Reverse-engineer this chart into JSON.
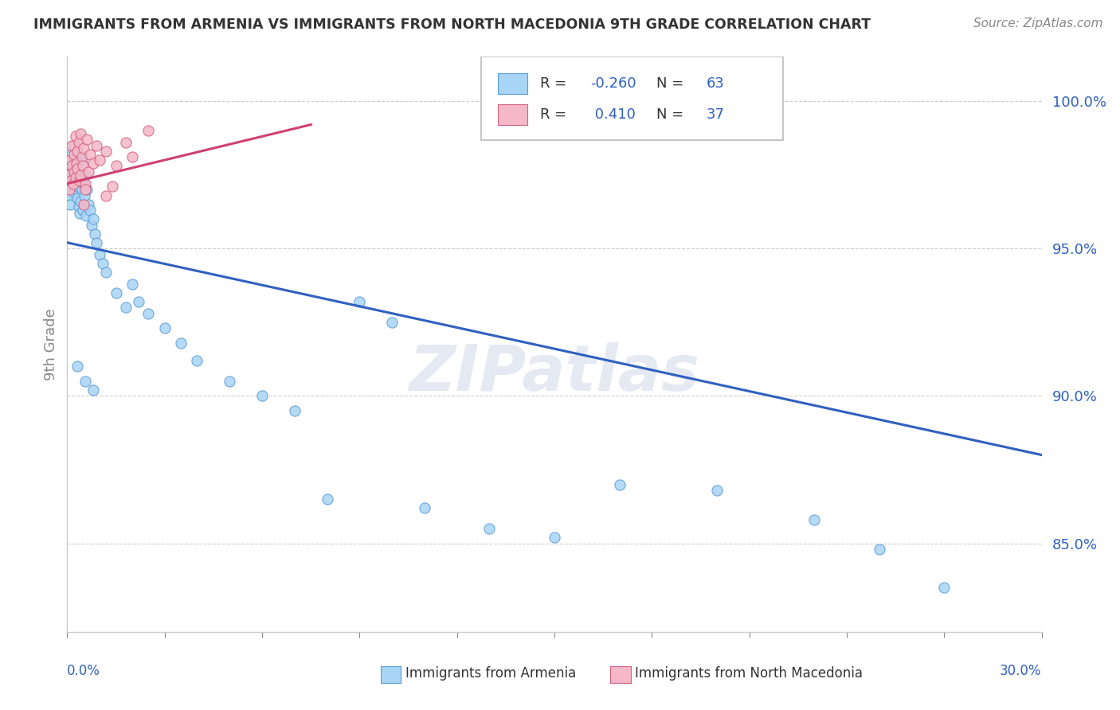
{
  "title": "IMMIGRANTS FROM ARMENIA VS IMMIGRANTS FROM NORTH MACEDONIA 9TH GRADE CORRELATION CHART",
  "source": "Source: ZipAtlas.com",
  "ylabel": "9th Grade",
  "xlim": [
    0.0,
    30.0
  ],
  "ylim": [
    82.0,
    101.5
  ],
  "yticks": [
    85.0,
    90.0,
    95.0,
    100.0
  ],
  "ytick_labels": [
    "85.0%",
    "90.0%",
    "95.0%",
    "100.0%"
  ],
  "r_armenia": -0.26,
  "n_armenia": 63,
  "r_macedonia": 0.41,
  "n_macedonia": 37,
  "color_armenia": "#a8d4f5",
  "color_armenia_edge": "#5b9bd5",
  "color_armenia_line": "#3060c0",
  "color_macedonia": "#f5b8c8",
  "color_macedonia_edge": "#d06080",
  "color_macedonia_line": "#d04070",
  "color_blue_text": "#3060c0",
  "watermark": "ZIPatlas",
  "armenia_x": [
    0.05,
    0.07,
    0.1,
    0.12,
    0.15,
    0.15,
    0.18,
    0.2,
    0.22,
    0.25,
    0.25,
    0.28,
    0.3,
    0.32,
    0.32,
    0.35,
    0.35,
    0.38,
    0.4,
    0.4,
    0.42,
    0.45,
    0.45,
    0.48,
    0.5,
    0.52,
    0.55,
    0.58,
    0.6,
    0.65,
    0.7,
    0.75,
    0.8,
    0.85,
    0.9,
    1.0,
    1.1,
    1.2,
    1.5,
    1.8,
    2.0,
    2.2,
    2.5,
    3.0,
    3.5,
    4.0,
    5.0,
    6.0,
    7.0,
    8.0,
    9.0,
    10.0,
    11.0,
    13.0,
    15.0,
    17.0,
    20.0,
    23.0,
    25.0,
    27.0,
    0.3,
    0.55,
    0.8
  ],
  "armenia_y": [
    96.8,
    97.2,
    96.5,
    97.8,
    97.0,
    98.2,
    97.5,
    98.5,
    96.9,
    97.3,
    98.0,
    97.6,
    96.7,
    97.1,
    98.3,
    96.4,
    97.8,
    96.2,
    97.4,
    98.1,
    96.6,
    97.0,
    97.9,
    96.3,
    97.2,
    96.8,
    97.5,
    96.1,
    97.0,
    96.5,
    96.3,
    95.8,
    96.0,
    95.5,
    95.2,
    94.8,
    94.5,
    94.2,
    93.5,
    93.0,
    93.8,
    93.2,
    92.8,
    92.3,
    91.8,
    91.2,
    90.5,
    90.0,
    89.5,
    86.5,
    93.2,
    92.5,
    86.2,
    85.5,
    85.2,
    87.0,
    86.8,
    85.8,
    84.8,
    83.5,
    91.0,
    90.5,
    90.2
  ],
  "macedonia_x": [
    0.05,
    0.07,
    0.1,
    0.12,
    0.15,
    0.15,
    0.18,
    0.2,
    0.22,
    0.25,
    0.25,
    0.28,
    0.3,
    0.32,
    0.35,
    0.38,
    0.4,
    0.42,
    0.45,
    0.48,
    0.5,
    0.55,
    0.6,
    0.65,
    0.7,
    0.8,
    0.9,
    1.0,
    1.2,
    1.5,
    1.8,
    2.0,
    2.5,
    1.2,
    1.4,
    0.5,
    0.55
  ],
  "macedonia_y": [
    97.5,
    97.0,
    98.0,
    97.3,
    98.5,
    97.8,
    97.2,
    98.2,
    97.6,
    98.8,
    97.4,
    97.9,
    98.3,
    97.7,
    98.6,
    97.3,
    98.9,
    97.5,
    98.1,
    97.8,
    98.4,
    97.2,
    98.7,
    97.6,
    98.2,
    97.9,
    98.5,
    98.0,
    98.3,
    97.8,
    98.6,
    98.1,
    99.0,
    96.8,
    97.1,
    96.5,
    97.0
  ],
  "arm_trend_x0": 0.0,
  "arm_trend_y0": 95.2,
  "arm_trend_x1": 30.0,
  "arm_trend_y1": 88.0,
  "mac_trend_x0": 0.0,
  "mac_trend_y0": 97.2,
  "mac_trend_x1": 7.5,
  "mac_trend_y1": 99.2
}
